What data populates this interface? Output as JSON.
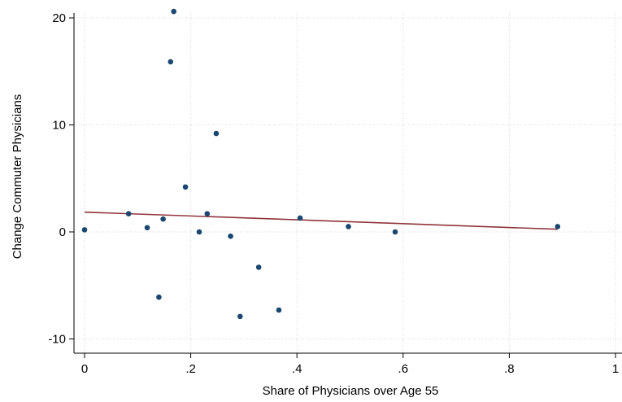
{
  "chart_data": {
    "type": "scatter",
    "title": "",
    "xlabel": "Share of Physicians over Age 55",
    "ylabel": "Change Commuter Physicians",
    "xlim": [
      0,
      1
    ],
    "ylim": [
      -10,
      20
    ],
    "x_ticks": [
      {
        "value": 0,
        "label": "0"
      },
      {
        "value": 0.2,
        "label": ".2"
      },
      {
        "value": 0.4,
        "label": ".4"
      },
      {
        "value": 0.6,
        "label": ".6"
      },
      {
        "value": 0.8,
        "label": ".8"
      },
      {
        "value": 1,
        "label": "1"
      }
    ],
    "y_ticks": [
      {
        "value": -10,
        "label": "-10"
      },
      {
        "value": 0,
        "label": "0"
      },
      {
        "value": 10,
        "label": "10"
      },
      {
        "value": 20,
        "label": "20"
      }
    ],
    "grid": true,
    "legend": "none",
    "series": [
      {
        "type": "scatter",
        "color": "#1a476f",
        "points": [
          {
            "x": 0.0,
            "y": 0.2
          },
          {
            "x": 0.083,
            "y": 1.7
          },
          {
            "x": 0.118,
            "y": 0.4
          },
          {
            "x": 0.14,
            "y": -6.1
          },
          {
            "x": 0.148,
            "y": 1.2
          },
          {
            "x": 0.162,
            "y": 15.9
          },
          {
            "x": 0.168,
            "y": 20.6
          },
          {
            "x": 0.19,
            "y": 4.2
          },
          {
            "x": 0.216,
            "y": 0.0
          },
          {
            "x": 0.231,
            "y": 1.7
          },
          {
            "x": 0.248,
            "y": 9.2
          },
          {
            "x": 0.275,
            "y": -0.4
          },
          {
            "x": 0.293,
            "y": -7.9
          },
          {
            "x": 0.328,
            "y": -3.3
          },
          {
            "x": 0.366,
            "y": -7.3
          },
          {
            "x": 0.406,
            "y": 1.3
          },
          {
            "x": 0.497,
            "y": 0.5
          },
          {
            "x": 0.585,
            "y": 0.0
          },
          {
            "x": 0.891,
            "y": 0.5
          }
        ]
      },
      {
        "type": "line",
        "color": "#90353b",
        "points": [
          {
            "x": 0.0,
            "y": 1.85
          },
          {
            "x": 0.891,
            "y": 0.25
          }
        ]
      }
    ]
  }
}
